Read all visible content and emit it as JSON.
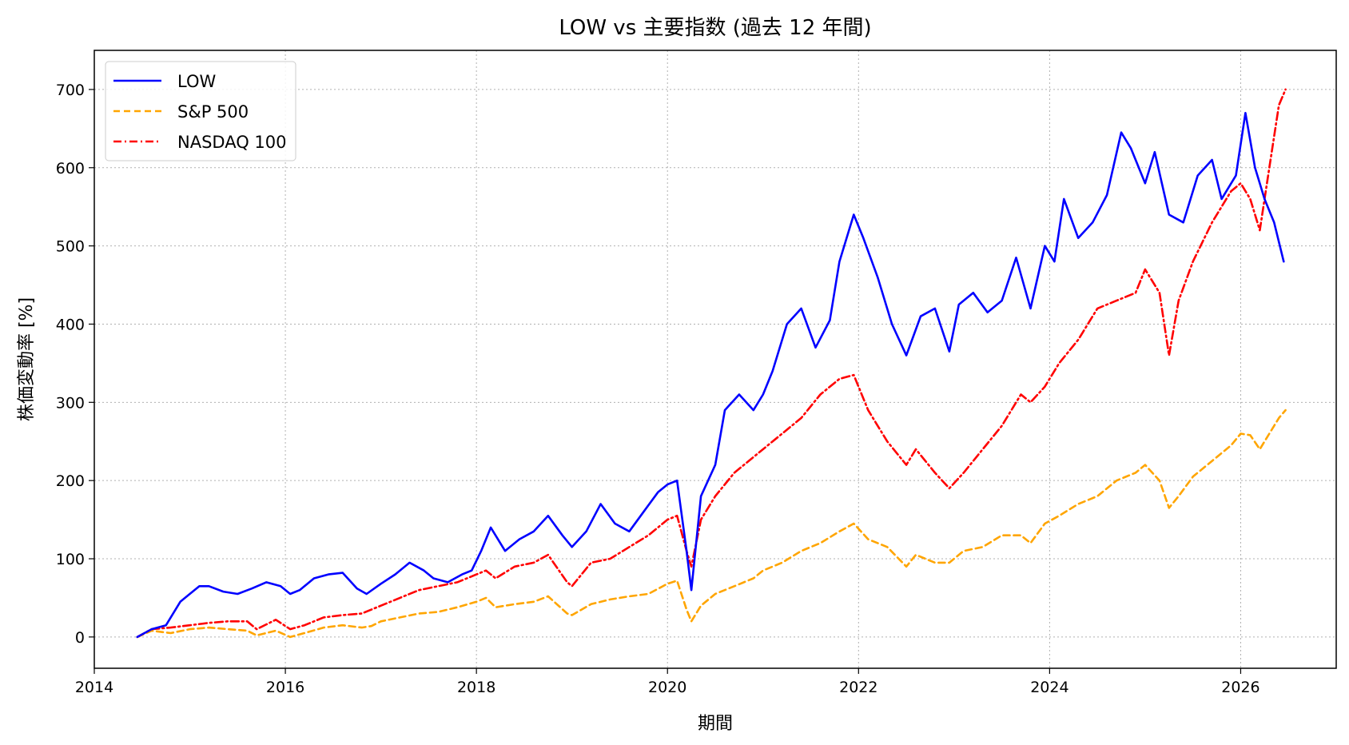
{
  "chart_data": {
    "type": "line",
    "title": "LOW vs 主要指数 (過去 12 年間)",
    "xlabel": "期間",
    "ylabel": "株価変動率 [%]",
    "xlim": [
      2014.0,
      2027.0
    ],
    "ylim": [
      -40,
      750
    ],
    "xticks": [
      2014,
      2016,
      2018,
      2020,
      2022,
      2024,
      2026
    ],
    "yticks": [
      0,
      100,
      200,
      300,
      400,
      500,
      600,
      700
    ],
    "grid": true,
    "legend_position": "top-left",
    "series": [
      {
        "name": "LOW",
        "color": "#0000ff",
        "dash": "solid",
        "x": [
          2014.45,
          2014.6,
          2014.75,
          2014.9,
          2015.0,
          2015.1,
          2015.2,
          2015.35,
          2015.5,
          2015.65,
          2015.8,
          2015.95,
          2016.05,
          2016.15,
          2016.3,
          2016.45,
          2016.6,
          2016.75,
          2016.85,
          2017.0,
          2017.15,
          2017.3,
          2017.45,
          2017.55,
          2017.7,
          2017.85,
          2017.95,
          2018.05,
          2018.15,
          2018.3,
          2018.45,
          2018.6,
          2018.75,
          2018.9,
          2019.0,
          2019.15,
          2019.3,
          2019.45,
          2019.6,
          2019.75,
          2019.9,
          2020.0,
          2020.1,
          2020.2,
          2020.25,
          2020.35,
          2020.5,
          2020.6,
          2020.75,
          2020.9,
          2021.0,
          2021.1,
          2021.25,
          2021.4,
          2021.55,
          2021.7,
          2021.8,
          2021.95,
          2022.05,
          2022.2,
          2022.35,
          2022.5,
          2022.65,
          2022.8,
          2022.95,
          2023.05,
          2023.2,
          2023.35,
          2023.5,
          2023.65,
          2023.8,
          2023.95,
          2024.05,
          2024.15,
          2024.3,
          2024.45,
          2024.6,
          2024.75,
          2024.85,
          2025.0,
          2025.1,
          2025.25,
          2025.4,
          2025.55,
          2025.7,
          2025.8,
          2025.95,
          2026.05,
          2026.15,
          2026.25,
          2026.35,
          2026.45
        ],
        "y": [
          0,
          10,
          15,
          45,
          55,
          65,
          65,
          58,
          55,
          62,
          70,
          65,
          55,
          60,
          75,
          80,
          82,
          62,
          55,
          68,
          80,
          95,
          85,
          75,
          70,
          80,
          85,
          110,
          140,
          110,
          125,
          135,
          155,
          130,
          115,
          135,
          170,
          145,
          135,
          160,
          185,
          195,
          200,
          110,
          60,
          180,
          220,
          290,
          310,
          290,
          310,
          340,
          400,
          420,
          370,
          405,
          480,
          540,
          510,
          460,
          400,
          360,
          410,
          420,
          365,
          425,
          440,
          415,
          430,
          485,
          420,
          500,
          480,
          560,
          510,
          530,
          565,
          645,
          625,
          580,
          620,
          540,
          530,
          590,
          610,
          560,
          590,
          670,
          600,
          560,
          530,
          480
        ]
      },
      {
        "name": "S&P 500",
        "color": "#ffa500",
        "dash": "dashed",
        "x": [
          2014.45,
          2014.6,
          2014.8,
          2015.0,
          2015.2,
          2015.4,
          2015.6,
          2015.7,
          2015.9,
          2016.05,
          2016.2,
          2016.4,
          2016.6,
          2016.8,
          2016.9,
          2017.0,
          2017.2,
          2017.4,
          2017.6,
          2017.8,
          2018.0,
          2018.1,
          2018.2,
          2018.4,
          2018.6,
          2018.75,
          2018.95,
          2019.0,
          2019.2,
          2019.4,
          2019.6,
          2019.8,
          2020.0,
          2020.1,
          2020.2,
          2020.25,
          2020.35,
          2020.5,
          2020.7,
          2020.9,
          2021.0,
          2021.2,
          2021.4,
          2021.6,
          2021.8,
          2021.95,
          2022.1,
          2022.3,
          2022.5,
          2022.6,
          2022.8,
          2022.95,
          2023.1,
          2023.3,
          2023.5,
          2023.7,
          2023.8,
          2023.95,
          2024.1,
          2024.3,
          2024.5,
          2024.7,
          2024.9,
          2025.0,
          2025.15,
          2025.25,
          2025.35,
          2025.5,
          2025.7,
          2025.9,
          2026.0,
          2026.1,
          2026.2,
          2026.3,
          2026.4,
          2026.47
        ],
        "y": [
          0,
          8,
          5,
          10,
          12,
          10,
          8,
          2,
          8,
          0,
          5,
          12,
          15,
          12,
          14,
          20,
          25,
          30,
          32,
          38,
          45,
          50,
          38,
          42,
          45,
          52,
          30,
          28,
          42,
          48,
          52,
          55,
          68,
          72,
          35,
          20,
          40,
          55,
          65,
          75,
          85,
          95,
          110,
          120,
          135,
          145,
          125,
          115,
          90,
          105,
          95,
          95,
          110,
          115,
          130,
          130,
          120,
          145,
          155,
          170,
          180,
          200,
          210,
          220,
          200,
          165,
          180,
          205,
          225,
          245,
          260,
          258,
          240,
          260,
          280,
          290
        ]
      },
      {
        "name": "NASDAQ 100",
        "color": "#ff0000",
        "dash": "dashdot",
        "x": [
          2014.45,
          2014.6,
          2014.8,
          2015.0,
          2015.2,
          2015.4,
          2015.6,
          2015.7,
          2015.9,
          2016.05,
          2016.2,
          2016.4,
          2016.6,
          2016.8,
          2017.0,
          2017.2,
          2017.4,
          2017.6,
          2017.8,
          2018.0,
          2018.1,
          2018.2,
          2018.4,
          2018.6,
          2018.75,
          2018.95,
          2019.0,
          2019.2,
          2019.4,
          2019.6,
          2019.8,
          2020.0,
          2020.1,
          2020.2,
          2020.25,
          2020.35,
          2020.5,
          2020.7,
          2020.9,
          2021.0,
          2021.2,
          2021.4,
          2021.6,
          2021.8,
          2021.95,
          2022.1,
          2022.3,
          2022.5,
          2022.6,
          2022.8,
          2022.95,
          2023.1,
          2023.3,
          2023.5,
          2023.7,
          2023.8,
          2023.95,
          2024.1,
          2024.3,
          2024.5,
          2024.7,
          2024.9,
          2025.0,
          2025.15,
          2025.25,
          2025.35,
          2025.5,
          2025.7,
          2025.9,
          2026.0,
          2026.1,
          2026.2,
          2026.3,
          2026.4,
          2026.47
        ],
        "y": [
          0,
          10,
          12,
          15,
          18,
          20,
          20,
          10,
          22,
          10,
          15,
          25,
          28,
          30,
          40,
          50,
          60,
          65,
          70,
          80,
          85,
          75,
          90,
          95,
          105,
          70,
          65,
          95,
          100,
          115,
          130,
          150,
          155,
          110,
          90,
          150,
          180,
          210,
          230,
          240,
          260,
          280,
          310,
          330,
          335,
          290,
          250,
          220,
          240,
          210,
          190,
          210,
          240,
          270,
          310,
          300,
          320,
          350,
          380,
          420,
          430,
          440,
          470,
          440,
          360,
          430,
          480,
          530,
          570,
          580,
          560,
          520,
          600,
          680,
          700
        ]
      }
    ]
  }
}
